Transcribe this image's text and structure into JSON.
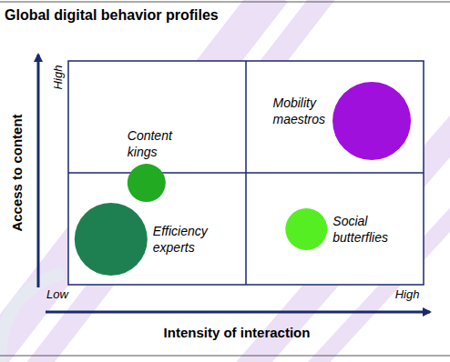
{
  "chart_data": {
    "type": "bubble",
    "title": "Global digital behavior profiles",
    "x_label": "Intensity of interaction",
    "y_label": "Access to content",
    "xlim": [
      0,
      100
    ],
    "ylim": [
      0,
      100
    ],
    "xticks": [
      {
        "value": 0,
        "label": "Low"
      },
      {
        "value": 100,
        "label": "High"
      }
    ],
    "yticks": [
      {
        "value": 100,
        "label": "High"
      }
    ],
    "labels": [
      "Content kings",
      "Mobility maestros",
      "Efficiency experts",
      "Social butterflies"
    ],
    "x": [
      22,
      85.4,
      12,
      67
    ],
    "values": [
      45.5,
      73.2,
      20.3,
      24.8
    ],
    "size": [
      21,
      43,
      40,
      23
    ],
    "colors": [
      "#22aa22",
      "#a010dc",
      "#1e8050",
      "#55ee22"
    ]
  }
}
